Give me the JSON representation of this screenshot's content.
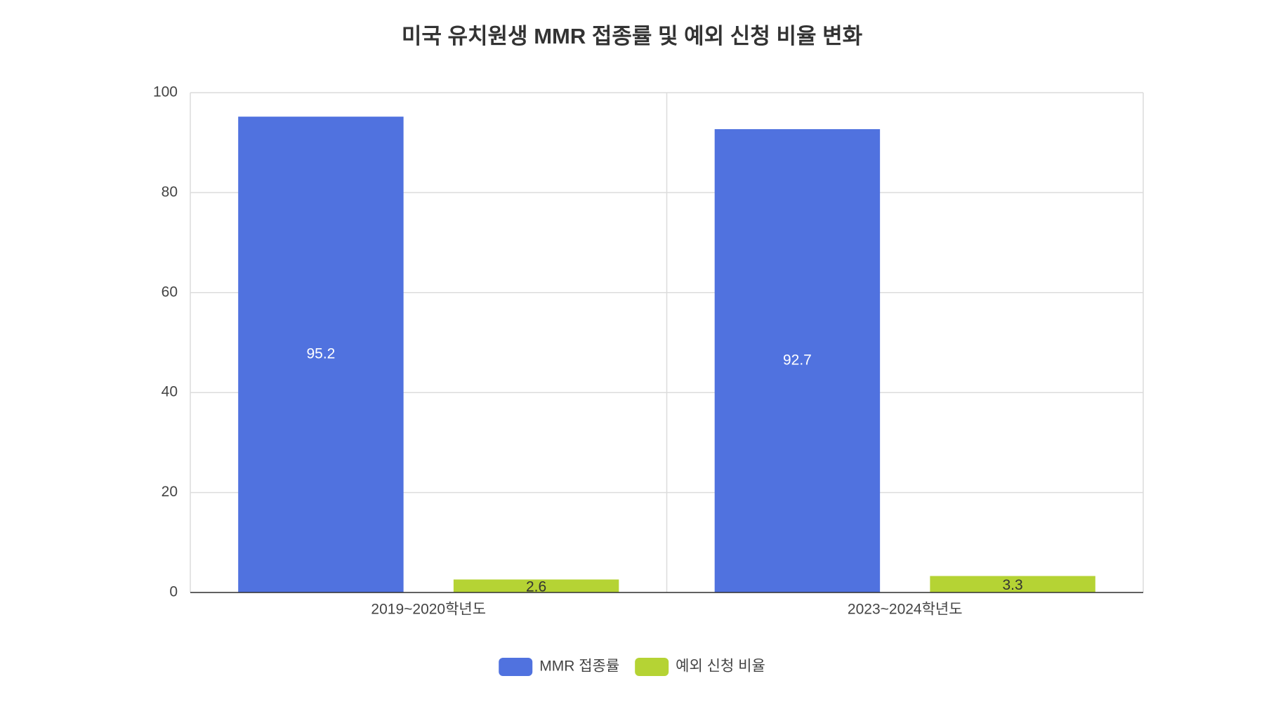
{
  "chart_data": {
    "type": "bar",
    "title": "미국 유치원생 MMR 접종률 및 예외 신청 비율 변화",
    "categories": [
      "2019~2020학년도",
      "2023~2024학년도"
    ],
    "series": [
      {
        "name": "MMR 접종률",
        "color": "#5072df",
        "values": [
          95.2,
          92.7
        ]
      },
      {
        "name": "예외 신청 비율",
        "color": "#b5d334",
        "values": [
          2.6,
          3.3
        ]
      }
    ],
    "ylim": [
      0,
      100
    ],
    "yticks": [
      0,
      20,
      40,
      60,
      80,
      100
    ],
    "grid": true,
    "legend": "bottom"
  }
}
